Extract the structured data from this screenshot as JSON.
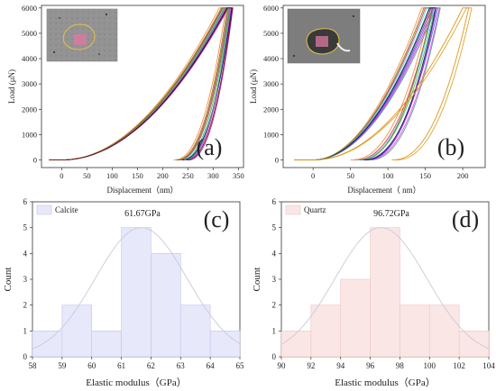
{
  "chart_data": [
    {
      "id": "a",
      "type": "line",
      "panel_label": "(a)",
      "xlabel": "Displacement（nm）",
      "ylabel": "Load (μN)",
      "xlim": [
        -40,
        360
      ],
      "ylim": [
        -300,
        6100
      ],
      "xticks": [
        0,
        50,
        100,
        150,
        200,
        250,
        300,
        350
      ],
      "yticks": [
        0,
        1000,
        2000,
        3000,
        4000,
        5000,
        6000
      ],
      "grid": false,
      "legend": "none",
      "inset": "SEM micrograph with indentation grid on calcite (top-left)",
      "curve_shape": {
        "max_load": 6000,
        "initial_plateau_end": 0,
        "loading_exponent": 2,
        "unloading_exponent": 2.3
      },
      "series": [
        {
          "values": {
            "loading_max_disp": 318,
            "unloading_end_disp": 228,
            "peak_disp": 330
          },
          "color": "#e6194b"
        },
        {
          "values": {
            "loading_max_disp": 322,
            "unloading_end_disp": 236,
            "peak_disp": 333
          },
          "color": "#3cb44b"
        },
        {
          "values": {
            "loading_max_disp": 326,
            "unloading_end_disp": 241,
            "peak_disp": 336
          },
          "color": "#4363d8"
        },
        {
          "values": {
            "loading_max_disp": 312,
            "unloading_end_disp": 222,
            "peak_disp": 325
          },
          "color": "#f58231"
        },
        {
          "values": {
            "loading_max_disp": 330,
            "unloading_end_disp": 250,
            "peak_disp": 339
          },
          "color": "#911eb4"
        },
        {
          "values": {
            "loading_max_disp": 320,
            "unloading_end_disp": 232,
            "peak_disp": 331
          },
          "color": "#42d4f4"
        },
        {
          "values": {
            "loading_max_disp": 324,
            "unloading_end_disp": 245,
            "peak_disp": 335
          },
          "color": "#f032e6"
        },
        {
          "values": {
            "loading_max_disp": 316,
            "unloading_end_disp": 226,
            "peak_disp": 328
          },
          "color": "#808000"
        },
        {
          "values": {
            "loading_max_disp": 328,
            "unloading_end_disp": 238,
            "peak_disp": 337
          },
          "color": "#000075"
        },
        {
          "values": {
            "loading_max_disp": 319,
            "unloading_end_disp": 230,
            "peak_disp": 332
          },
          "color": "#9A6324"
        },
        {
          "values": {
            "loading_max_disp": 323,
            "unloading_end_disp": 243,
            "peak_disp": 334
          },
          "color": "#469990"
        },
        {
          "values": {
            "loading_max_disp": 327,
            "unloading_end_disp": 247,
            "peak_disp": 338
          },
          "color": "#800000"
        }
      ]
    },
    {
      "id": "b",
      "type": "line",
      "panel_label": "(b)",
      "xlabel": "Displacement（ nm）",
      "ylabel": "Load (μN)",
      "xlim": [
        -40,
        230
      ],
      "ylim": [
        -300,
        6100
      ],
      "xticks": [
        0,
        50,
        100,
        150,
        200
      ],
      "yticks": [
        0,
        1000,
        2000,
        3000,
        4000,
        5000,
        6000
      ],
      "grid": false,
      "legend": "none",
      "inset": "SEM micrograph with indentation grid on quartz (top-left)",
      "curve_shape": {
        "max_load": 6000,
        "initial_plateau_end": 0,
        "loading_exponent": 2,
        "unloading_exponent": 2.3
      },
      "series": [
        {
          "values": {
            "loading_max_disp": 150,
            "unloading_end_disp": 55,
            "peak_disp": 160
          },
          "color": "#e6194b"
        },
        {
          "values": {
            "loading_max_disp": 155,
            "unloading_end_disp": 60,
            "peak_disp": 163
          },
          "color": "#3cb44b"
        },
        {
          "values": {
            "loading_max_disp": 160,
            "unloading_end_disp": 65,
            "peak_disp": 167
          },
          "color": "#4363d8"
        },
        {
          "values": {
            "loading_max_disp": 145,
            "unloading_end_disp": 50,
            "peak_disp": 157
          },
          "color": "#f58231"
        },
        {
          "values": {
            "loading_max_disp": 158,
            "unloading_end_disp": 70,
            "peak_disp": 165
          },
          "color": "#911eb4"
        },
        {
          "values": {
            "loading_max_disp": 152,
            "unloading_end_disp": 58,
            "peak_disp": 161
          },
          "color": "#42d4f4"
        },
        {
          "values": {
            "loading_max_disp": 162,
            "unloading_end_disp": 72,
            "peak_disp": 169
          },
          "color": "#f032e6"
        },
        {
          "values": {
            "loading_max_disp": 148,
            "unloading_end_disp": 62,
            "peak_disp": 159
          },
          "color": "#808000"
        },
        {
          "values": {
            "loading_max_disp": 156,
            "unloading_end_disp": 68,
            "peak_disp": 164
          },
          "color": "#000075"
        },
        {
          "values": {
            "loading_max_disp": 164,
            "unloading_end_disp": 75,
            "peak_disp": 170
          },
          "color": "#469990"
        },
        {
          "values": {
            "loading_max_disp": 205,
            "unloading_end_disp": 110,
            "peak_disp": 212
          },
          "color": "#d4a017"
        },
        {
          "values": {
            "loading_max_disp": 200,
            "unloading_end_disp": 105,
            "peak_disp": 208
          },
          "color": "#e08a00"
        }
      ]
    },
    {
      "id": "c",
      "type": "bar",
      "panel_label": "(c)",
      "legend_entry": "Calcite",
      "annotation": "61.67GPa",
      "xlabel": "Elastic modulus（GPa）",
      "ylabel": "Count",
      "x_bin_edges": [
        58,
        59,
        60,
        61,
        62,
        63,
        64,
        65
      ],
      "values": [
        1,
        2,
        1,
        5,
        4,
        2,
        1
      ],
      "xlim": [
        58,
        65
      ],
      "ylim": [
        0,
        6
      ],
      "xticks": [
        58,
        59,
        60,
        61,
        62,
        63,
        64,
        65
      ],
      "yticks": [
        0,
        1,
        2,
        3,
        4,
        5,
        6
      ],
      "fit": {
        "type": "normal",
        "mean": 61.67,
        "sd": 1.55,
        "peak": 5
      },
      "bar_fill": "#e8e8fb",
      "bar_edge": "#c4c4ea",
      "fit_color": "#c9c9dd",
      "legend": "top-left"
    },
    {
      "id": "d",
      "type": "bar",
      "panel_label": "(d)",
      "legend_entry": "Quartz",
      "annotation": "96.72GPa",
      "xlabel": "Elastic modulus（GPa）",
      "ylabel": "Count",
      "x_bin_edges": [
        90,
        92,
        94,
        96,
        98,
        100,
        102,
        104
      ],
      "values": [
        1,
        2,
        3,
        5,
        2,
        2,
        1
      ],
      "xlim": [
        90,
        104
      ],
      "ylim": [
        0,
        6
      ],
      "xticks": [
        90,
        92,
        94,
        96,
        98,
        100,
        102,
        104
      ],
      "yticks": [
        0,
        1,
        2,
        3,
        4,
        5,
        6
      ],
      "fit": {
        "type": "normal",
        "mean": 96.72,
        "sd": 3.1,
        "peak": 5
      },
      "bar_fill": "#fbe6e6",
      "bar_edge": "#eec4c4",
      "fit_color": "#c9c9dd",
      "legend": "top-left"
    }
  ]
}
